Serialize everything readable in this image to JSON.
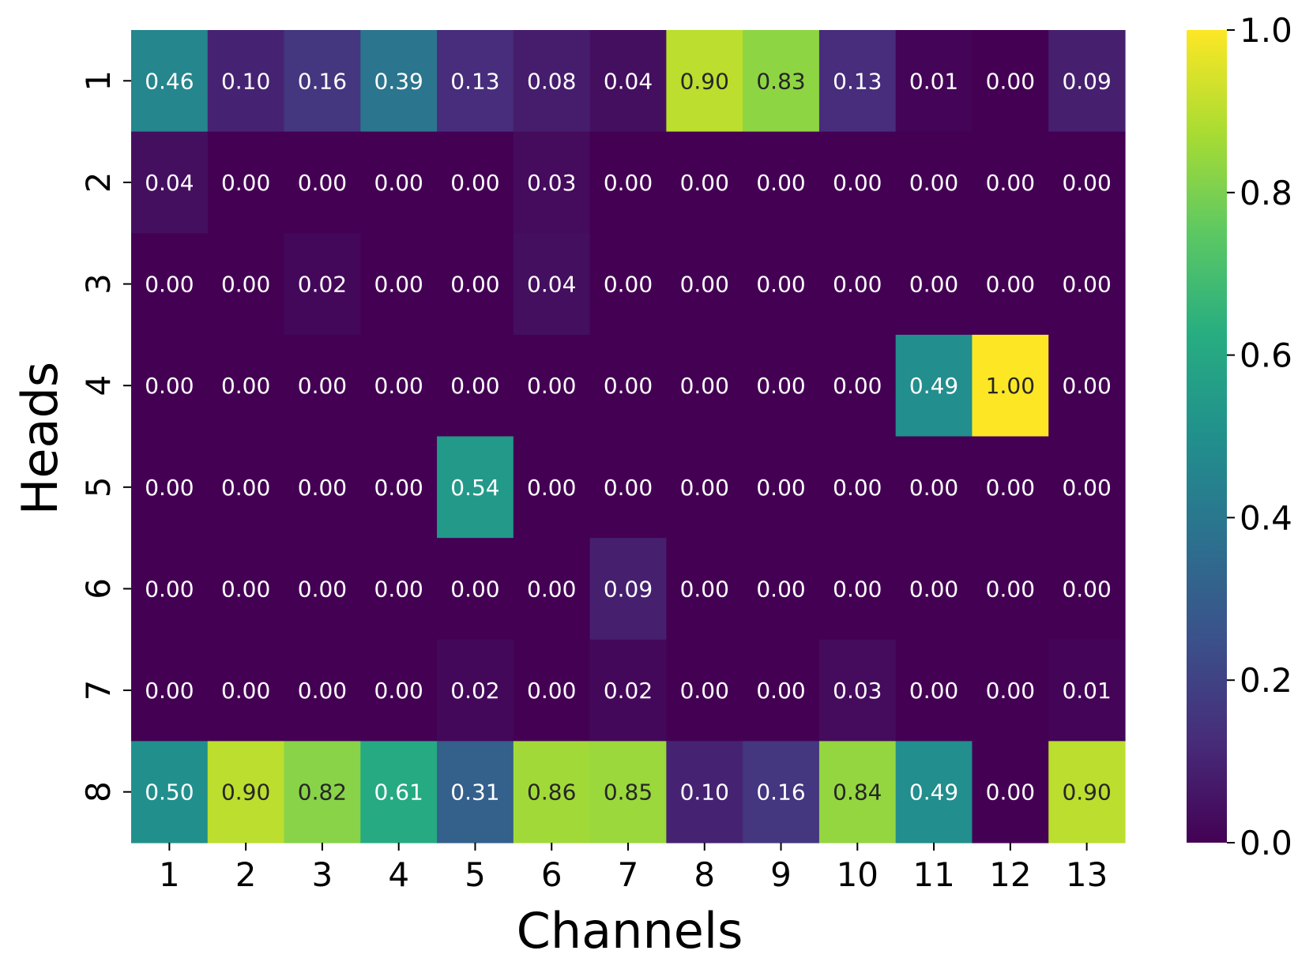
{
  "chart_data": {
    "type": "heatmap",
    "xlabel": "Channels",
    "ylabel": "Heads",
    "x_ticks": [
      "1",
      "2",
      "3",
      "4",
      "5",
      "6",
      "7",
      "8",
      "9",
      "10",
      "11",
      "12",
      "13"
    ],
    "y_ticks": [
      "1",
      "2",
      "3",
      "4",
      "5",
      "6",
      "7",
      "8"
    ],
    "colormap": "viridis",
    "vmin": 0.0,
    "vmax": 1.0,
    "colorbar_ticks": [
      "0.0",
      "0.2",
      "0.4",
      "0.6",
      "0.8",
      "1.0"
    ],
    "values": [
      [
        0.46,
        0.1,
        0.16,
        0.39,
        0.13,
        0.08,
        0.04,
        0.9,
        0.83,
        0.13,
        0.01,
        0.0,
        0.09
      ],
      [
        0.04,
        0.0,
        0.0,
        0.0,
        0.0,
        0.03,
        0.0,
        0.0,
        0.0,
        0.0,
        0.0,
        0.0,
        0.0
      ],
      [
        0.0,
        0.0,
        0.02,
        0.0,
        0.0,
        0.04,
        0.0,
        0.0,
        0.0,
        0.0,
        0.0,
        0.0,
        0.0
      ],
      [
        0.0,
        0.0,
        0.0,
        0.0,
        0.0,
        0.0,
        0.0,
        0.0,
        0.0,
        0.0,
        0.49,
        1.0,
        0.0
      ],
      [
        0.0,
        0.0,
        0.0,
        0.0,
        0.54,
        0.0,
        0.0,
        0.0,
        0.0,
        0.0,
        0.0,
        0.0,
        0.0
      ],
      [
        0.0,
        0.0,
        0.0,
        0.0,
        0.0,
        0.0,
        0.09,
        0.0,
        0.0,
        0.0,
        0.0,
        0.0,
        0.0
      ],
      [
        0.0,
        0.0,
        0.0,
        0.0,
        0.02,
        0.0,
        0.02,
        0.0,
        0.0,
        0.03,
        0.0,
        0.0,
        0.01
      ],
      [
        0.5,
        0.9,
        0.82,
        0.61,
        0.31,
        0.86,
        0.85,
        0.1,
        0.16,
        0.84,
        0.49,
        0.0,
        0.9
      ]
    ]
  }
}
